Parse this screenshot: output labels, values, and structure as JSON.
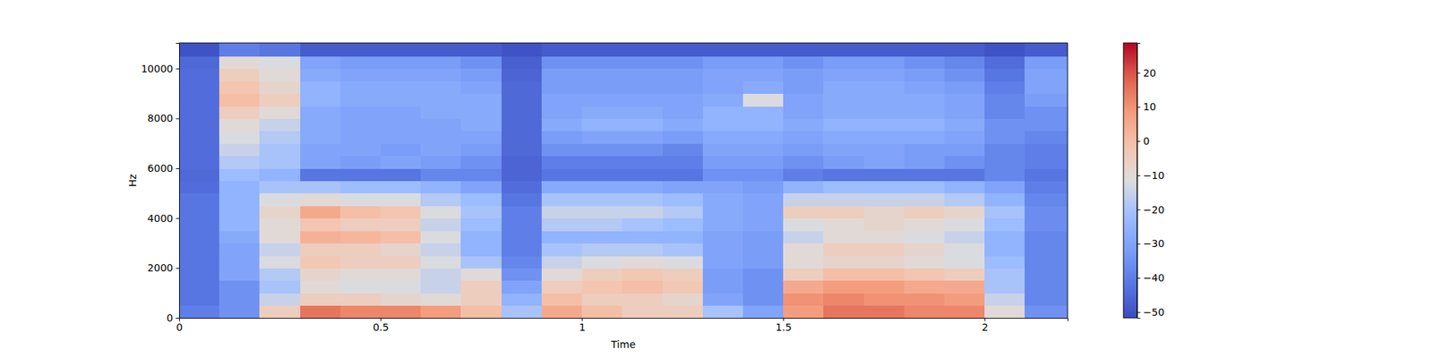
{
  "chart_data": {
    "type": "heatmap",
    "x_label": "Time",
    "y_label": "Hz",
    "xlim": [
      0,
      2.206
    ],
    "xticks": [
      0,
      0.5,
      1,
      1.5,
      2
    ],
    "ylim": [
      0,
      11025
    ],
    "yticks": [
      0,
      2000,
      4000,
      6000,
      8000,
      10000
    ],
    "x_bins": [
      0,
      0.1,
      0.2,
      0.3,
      0.4,
      0.5,
      0.6,
      0.7,
      0.8,
      0.9,
      1.0,
      1.1,
      1.2,
      1.3,
      1.4,
      1.5,
      1.6,
      1.7,
      1.8,
      1.9,
      2.0,
      2.1,
      2.206
    ],
    "y_bins": [
      0,
      500,
      1000,
      1500,
      2000,
      2500,
      3000,
      3500,
      4000,
      4500,
      5000,
      5500,
      6000,
      6500,
      7000,
      7500,
      8000,
      8500,
      9000,
      9500,
      10000,
      10500,
      11025
    ],
    "values": [
      [
        -40,
        -35,
        -5,
        15,
        12,
        12,
        8,
        0,
        -20,
        5,
        0,
        -5,
        -5,
        -20,
        -30,
        8,
        15,
        15,
        12,
        12,
        -10,
        -35
      ],
      [
        -42,
        -35,
        -15,
        -5,
        -5,
        -8,
        -10,
        -5,
        -25,
        0,
        -5,
        -5,
        -8,
        -30,
        -35,
        10,
        12,
        10,
        10,
        8,
        -15,
        -38
      ],
      [
        -42,
        -35,
        -20,
        -10,
        -12,
        -12,
        -15,
        -5,
        -30,
        -5,
        -2,
        0,
        -3,
        -32,
        -35,
        5,
        8,
        8,
        5,
        5,
        -20,
        -38
      ],
      [
        -42,
        -30,
        -18,
        -8,
        -10,
        -10,
        -15,
        -10,
        -35,
        -10,
        -5,
        -3,
        -5,
        -32,
        -35,
        -5,
        0,
        0,
        -2,
        -5,
        -20,
        -38
      ],
      [
        -42,
        -30,
        -12,
        -3,
        -5,
        -5,
        -12,
        -20,
        -38,
        -15,
        -12,
        -10,
        -12,
        -30,
        -32,
        -10,
        -8,
        -8,
        -10,
        -12,
        -22,
        -38
      ],
      [
        -42,
        -30,
        -15,
        -5,
        -5,
        -8,
        -15,
        -25,
        -40,
        -20,
        -18,
        -18,
        -20,
        -30,
        -32,
        -10,
        -5,
        -5,
        -8,
        -12,
        -25,
        -38
      ],
      [
        -42,
        -28,
        -10,
        3,
        2,
        0,
        -12,
        -25,
        -40,
        -25,
        -25,
        -25,
        -25,
        -30,
        -32,
        -15,
        -10,
        -10,
        -12,
        -15,
        -25,
        -38
      ],
      [
        -42,
        -25,
        -10,
        -2,
        -5,
        -5,
        -15,
        -22,
        -40,
        -18,
        -18,
        -20,
        -22,
        -28,
        -30,
        -12,
        -10,
        -8,
        -10,
        -12,
        -22,
        -36
      ],
      [
        -42,
        -25,
        -8,
        5,
        0,
        -2,
        -12,
        -20,
        -40,
        -15,
        -15,
        -15,
        -18,
        -28,
        -30,
        -5,
        -5,
        -8,
        -5,
        -8,
        -20,
        -36
      ],
      [
        -42,
        -25,
        -12,
        -10,
        -12,
        -12,
        -18,
        -22,
        -42,
        -20,
        -20,
        -20,
        -22,
        -28,
        -30,
        -15,
        -15,
        -15,
        -15,
        -18,
        -25,
        -38
      ],
      [
        -44,
        -25,
        -20,
        -20,
        -22,
        -22,
        -25,
        -30,
        -44,
        -28,
        -28,
        -28,
        -30,
        -30,
        -32,
        -25,
        -22,
        -22,
        -22,
        -25,
        -30,
        -40
      ],
      [
        -45,
        -22,
        -25,
        -42,
        -42,
        -42,
        -38,
        -38,
        -46,
        -42,
        -42,
        -42,
        -42,
        -35,
        -35,
        -40,
        -42,
        -42,
        -42,
        -42,
        -38,
        -42
      ],
      [
        -44,
        -18,
        -20,
        -30,
        -32,
        -30,
        -32,
        -35,
        -46,
        -40,
        -40,
        -40,
        -40,
        -32,
        -32,
        -35,
        -32,
        -30,
        -32,
        -35,
        -38,
        -40
      ],
      [
        -44,
        -15,
        -20,
        -30,
        -30,
        -32,
        -30,
        -32,
        -45,
        -35,
        -35,
        -35,
        -38,
        -30,
        -30,
        -32,
        -30,
        -30,
        -32,
        -32,
        -38,
        -40
      ],
      [
        -44,
        -12,
        -18,
        -28,
        -30,
        -30,
        -30,
        -30,
        -45,
        -32,
        -30,
        -30,
        -32,
        -28,
        -28,
        -30,
        -28,
        -28,
        -28,
        -30,
        -35,
        -38
      ],
      [
        -44,
        -10,
        -15,
        -28,
        -30,
        -30,
        -30,
        -28,
        -45,
        -28,
        -25,
        -25,
        -28,
        -25,
        -25,
        -28,
        -25,
        -25,
        -25,
        -28,
        -35,
        -35
      ],
      [
        -44,
        -5,
        -10,
        -28,
        -30,
        -30,
        -28,
        -28,
        -45,
        -30,
        -28,
        -28,
        -30,
        -25,
        -25,
        -30,
        -28,
        -28,
        -28,
        -30,
        -38,
        -35
      ],
      [
        -44,
        0,
        -5,
        -25,
        -28,
        -28,
        -28,
        -28,
        -45,
        -30,
        -30,
        -30,
        -30,
        -28,
        -12,
        -30,
        -28,
        -28,
        -28,
        -30,
        -38,
        -32
      ],
      [
        -44,
        -2,
        -8,
        -25,
        -28,
        -28,
        -28,
        -30,
        -45,
        -32,
        -32,
        -32,
        -32,
        -30,
        -28,
        -32,
        -28,
        -28,
        -30,
        -32,
        -40,
        -30
      ],
      [
        -44,
        -5,
        -10,
        -28,
        -30,
        -30,
        -30,
        -32,
        -46,
        -32,
        -32,
        -32,
        -32,
        -30,
        -30,
        -32,
        -30,
        -30,
        -32,
        -35,
        -42,
        -30
      ],
      [
        -45,
        -10,
        -12,
        -30,
        -32,
        -32,
        -32,
        -35,
        -47,
        -35,
        -35,
        -35,
        -35,
        -32,
        -32,
        -35,
        -32,
        -32,
        -35,
        -38,
        -44,
        -32
      ],
      [
        -50,
        -40,
        -42,
        -48,
        -48,
        -48,
        -48,
        -48,
        -50,
        -48,
        -48,
        -48,
        -48,
        -48,
        -48,
        -48,
        -48,
        -48,
        -48,
        -48,
        -50,
        -48
      ]
    ],
    "colorbar": {
      "range": [
        -51.7,
        28.7
      ],
      "ticks": [
        {
          "value": -50,
          "label": "−50"
        },
        {
          "value": -40,
          "label": "−40"
        },
        {
          "value": -30,
          "label": "−30"
        },
        {
          "value": -20,
          "label": "−20"
        },
        {
          "value": -10,
          "label": "−10"
        },
        0,
        10,
        20
      ]
    }
  }
}
